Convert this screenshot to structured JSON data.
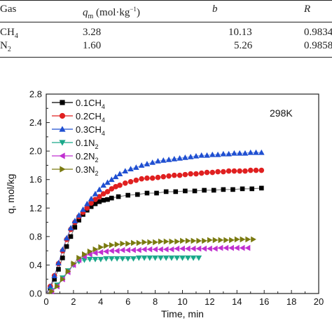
{
  "table": {
    "header": {
      "gas": "Gas",
      "qm_symbol": "q",
      "qm_subscript": "m",
      "qm_unit_before_exp": "(mol·kg",
      "qm_unit_exp": "−1",
      "qm_unit_after_exp": ")",
      "b": "b",
      "r": "R"
    },
    "rows": [
      {
        "gas_base": "CH",
        "gas_sub": "4",
        "qm": "3.28",
        "b": "10.13",
        "r": "0.9834"
      },
      {
        "gas_base": "N",
        "gas_sub": "2",
        "qm": "1.60",
        "b": "5.26",
        "r": "0.9858"
      }
    ]
  },
  "chart_data": {
    "type": "scatter",
    "annotation": "298K",
    "xlabel": "Time, min",
    "ylabel": "q, mol/kg",
    "xlim": [
      0,
      20
    ],
    "ylim": [
      0,
      2.8
    ],
    "xticks": [
      "0",
      "2",
      "4",
      "6",
      "8",
      "10",
      "12",
      "14",
      "16",
      "18",
      "20"
    ],
    "yticks": [
      "0.0",
      "0.4",
      "0.8",
      "1.2",
      "1.6",
      "2.0",
      "2.4",
      "2.8"
    ],
    "legend_position": "top-left",
    "grid": false,
    "series": [
      {
        "name": "0.1CH4",
        "name_base": "0.1CH",
        "name_sub": "4",
        "marker": "square",
        "color": "#000000",
        "x": [
          0.3,
          0.6,
          0.9,
          1.2,
          1.5,
          1.8,
          2.1,
          2.4,
          2.7,
          3.0,
          3.3,
          3.6,
          3.9,
          4.2,
          4.5,
          4.8,
          5.3,
          6.0,
          6.7,
          7.4,
          8.1,
          8.8,
          9.5,
          10.2,
          10.9,
          11.6,
          12.3,
          13.0,
          13.7,
          14.4,
          15.1,
          15.8
        ],
        "y": [
          0.08,
          0.2,
          0.34,
          0.5,
          0.66,
          0.8,
          0.93,
          1.03,
          1.11,
          1.17,
          1.22,
          1.26,
          1.29,
          1.31,
          1.32,
          1.34,
          1.36,
          1.38,
          1.39,
          1.41,
          1.41,
          1.43,
          1.43,
          1.44,
          1.44,
          1.45,
          1.45,
          1.46,
          1.46,
          1.47,
          1.47,
          1.48
        ]
      },
      {
        "name": "0.2CH4",
        "name_base": "0.2CH",
        "name_sub": "4",
        "marker": "circle",
        "color": "#e02020",
        "x": [
          0.3,
          0.6,
          0.9,
          1.2,
          1.5,
          1.8,
          2.1,
          2.4,
          2.7,
          3.0,
          3.3,
          3.6,
          3.9,
          4.2,
          4.5,
          4.8,
          5.1,
          5.4,
          5.8,
          6.2,
          6.6,
          7.0,
          7.4,
          7.8,
          8.2,
          8.6,
          9.0,
          9.4,
          9.8,
          10.2,
          10.6,
          11.0,
          11.4,
          11.8,
          12.2,
          12.6,
          13.0,
          13.4,
          13.8,
          14.2,
          14.6,
          15.0,
          15.4,
          15.8
        ],
        "y": [
          0.1,
          0.25,
          0.42,
          0.6,
          0.76,
          0.9,
          1.0,
          1.08,
          1.14,
          1.2,
          1.27,
          1.32,
          1.36,
          1.4,
          1.43,
          1.47,
          1.5,
          1.52,
          1.55,
          1.57,
          1.59,
          1.61,
          1.62,
          1.62,
          1.63,
          1.64,
          1.65,
          1.66,
          1.66,
          1.67,
          1.68,
          1.68,
          1.69,
          1.7,
          1.7,
          1.71,
          1.71,
          1.72,
          1.72,
          1.72,
          1.72,
          1.73,
          1.73,
          1.73
        ]
      },
      {
        "name": "0.3CH4",
        "name_base": "0.3CH",
        "name_sub": "4",
        "marker": "triangle-up",
        "color": "#1f4fd1",
        "x": [
          0.3,
          0.6,
          0.9,
          1.2,
          1.5,
          1.8,
          2.1,
          2.4,
          2.7,
          3.0,
          3.3,
          3.6,
          3.9,
          4.2,
          4.5,
          4.8,
          5.1,
          5.4,
          5.8,
          6.2,
          6.6,
          7.0,
          7.4,
          7.8,
          8.2,
          8.6,
          9.0,
          9.4,
          9.8,
          10.2,
          10.6,
          11.0,
          11.4,
          11.8,
          12.2,
          12.6,
          13.0,
          13.4,
          13.8,
          14.2,
          14.6,
          15.0,
          15.4,
          15.8
        ],
        "y": [
          0.1,
          0.25,
          0.43,
          0.62,
          0.78,
          0.92,
          1.02,
          1.1,
          1.18,
          1.26,
          1.33,
          1.4,
          1.46,
          1.52,
          1.56,
          1.6,
          1.64,
          1.68,
          1.72,
          1.75,
          1.77,
          1.8,
          1.82,
          1.84,
          1.86,
          1.87,
          1.88,
          1.89,
          1.9,
          1.91,
          1.92,
          1.93,
          1.94,
          1.94,
          1.95,
          1.95,
          1.96,
          1.96,
          1.97,
          1.97,
          1.97,
          1.98,
          1.98,
          1.98
        ]
      },
      {
        "name": "0.1N2",
        "name_base": "0.1N",
        "name_sub": "2",
        "marker": "triangle-down",
        "color": "#1aa88a",
        "x": [
          0.4,
          0.8,
          1.2,
          1.6,
          2.0,
          2.4,
          2.8,
          3.2,
          3.6,
          4.0,
          4.4,
          4.8,
          5.2,
          5.6,
          6.0,
          6.4,
          6.8,
          7.2,
          7.6,
          8.0,
          8.4,
          8.8,
          9.2,
          9.6,
          10.0,
          10.4,
          10.8,
          11.2
        ],
        "y": [
          0.04,
          0.12,
          0.22,
          0.32,
          0.4,
          0.45,
          0.47,
          0.48,
          0.48,
          0.48,
          0.49,
          0.49,
          0.49,
          0.49,
          0.49,
          0.49,
          0.5,
          0.5,
          0.5,
          0.5,
          0.5,
          0.5,
          0.5,
          0.5,
          0.5,
          0.5,
          0.5,
          0.5
        ]
      },
      {
        "name": "0.2N2",
        "name_base": "0.2N",
        "name_sub": "2",
        "marker": "triangle-left",
        "color": "#c030d0",
        "x": [
          0.4,
          0.8,
          1.2,
          1.6,
          2.0,
          2.4,
          2.8,
          3.2,
          3.6,
          4.0,
          4.4,
          4.8,
          5.2,
          5.6,
          6.0,
          6.4,
          6.8,
          7.2,
          7.6,
          8.0,
          8.4,
          8.8,
          9.2,
          9.6,
          10.0,
          10.4,
          10.8,
          11.2,
          11.6,
          12.0,
          12.4,
          12.8,
          13.2,
          13.6,
          14.0,
          14.4,
          14.8
        ],
        "y": [
          0.03,
          0.1,
          0.2,
          0.3,
          0.4,
          0.47,
          0.52,
          0.55,
          0.57,
          0.58,
          0.59,
          0.6,
          0.6,
          0.61,
          0.61,
          0.61,
          0.61,
          0.62,
          0.62,
          0.62,
          0.62,
          0.62,
          0.62,
          0.63,
          0.63,
          0.63,
          0.63,
          0.63,
          0.63,
          0.63,
          0.63,
          0.64,
          0.64,
          0.64,
          0.64,
          0.64,
          0.64
        ]
      },
      {
        "name": "0.3N2",
        "name_base": "0.3N",
        "name_sub": "2",
        "marker": "triangle-right",
        "color": "#7a7a10",
        "x": [
          0.4,
          0.8,
          1.2,
          1.6,
          2.0,
          2.4,
          2.8,
          3.2,
          3.6,
          4.0,
          4.4,
          4.8,
          5.2,
          5.6,
          6.0,
          6.4,
          6.8,
          7.2,
          7.6,
          8.0,
          8.4,
          8.8,
          9.2,
          9.6,
          10.0,
          10.4,
          10.8,
          11.2,
          11.6,
          12.0,
          12.4,
          12.8,
          13.2,
          13.6,
          14.0,
          14.4,
          14.8,
          15.2
        ],
        "y": [
          0.03,
          0.1,
          0.2,
          0.31,
          0.42,
          0.5,
          0.55,
          0.59,
          0.62,
          0.65,
          0.67,
          0.68,
          0.69,
          0.7,
          0.7,
          0.71,
          0.71,
          0.72,
          0.72,
          0.72,
          0.73,
          0.73,
          0.73,
          0.73,
          0.74,
          0.74,
          0.74,
          0.74,
          0.74,
          0.75,
          0.75,
          0.75,
          0.75,
          0.75,
          0.76,
          0.76,
          0.76,
          0.76
        ]
      }
    ]
  }
}
